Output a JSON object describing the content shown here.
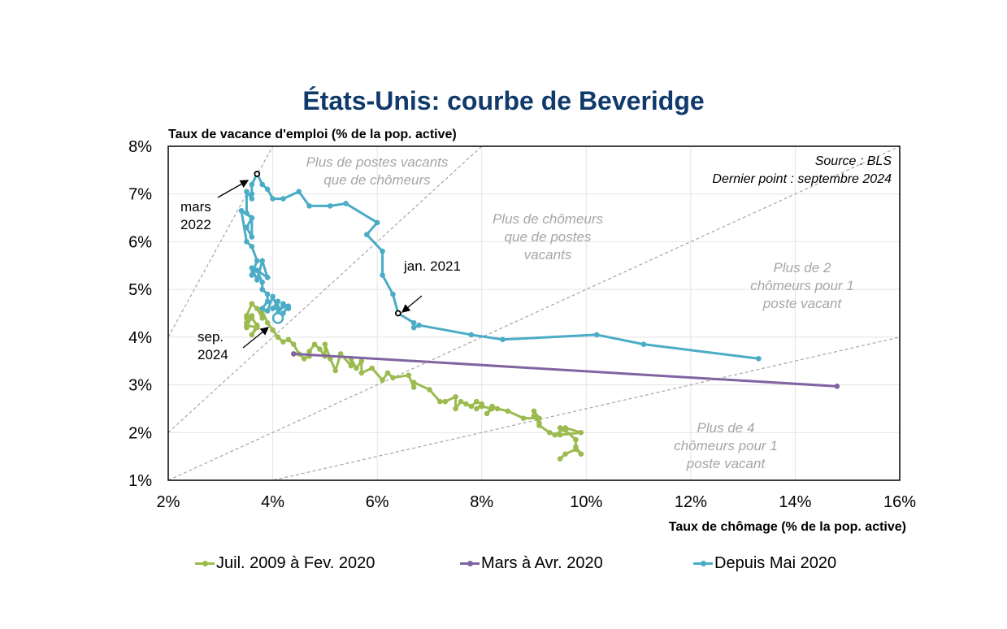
{
  "chart_data": {
    "type": "line",
    "title": "États-Unis: courbe de Beveridge",
    "xlabel": "Taux de chômage (% de la pop. active)",
    "ylabel": "Taux de vacance d'emploi (% de la pop. active)",
    "xlim": [
      2,
      16
    ],
    "ylim": [
      1,
      8
    ],
    "x_ticks": [
      "2%",
      "4%",
      "6%",
      "8%",
      "10%",
      "12%",
      "14%",
      "16%"
    ],
    "y_ticks": [
      "1%",
      "2%",
      "3%",
      "4%",
      "5%",
      "6%",
      "7%",
      "8%"
    ],
    "grid": true,
    "legend_position": "bottom",
    "source_note": "Source : BLS",
    "last_point_note": "Dernier point : septembre 2024",
    "region_labels": [
      {
        "text": "Plus de postes vacants\nque de chômeurs"
      },
      {
        "text": "Plus de chômeurs\nque de postes\nvacants"
      },
      {
        "text": "Plus de 2\nchômeurs pour 1\nposte vacant"
      },
      {
        "text": "Plus de 4\nchômeurs pour 1\nposte vacant"
      }
    ],
    "ratio_lines": [
      0.5,
      1,
      2,
      4
    ],
    "annotations": [
      {
        "text": "mars\n2022",
        "x": 3.7,
        "y": 7.42
      },
      {
        "text": "jan. 2021",
        "x": 6.4,
        "y": 4.5
      },
      {
        "text": "sep.\n2024",
        "x": 4.1,
        "y": 4.4
      }
    ],
    "series": [
      {
        "name": "Juil. 2009 à Fev. 2020",
        "color": "#9bbb4f",
        "x": [
          9.5,
          9.6,
          9.8,
          9.9,
          9.8,
          9.8,
          9.6,
          9.5,
          9.5,
          9.9,
          9.6,
          9.4,
          9.3,
          9.1,
          9.1,
          9.0,
          9.0,
          9.1,
          8.8,
          8.5,
          8.3,
          8.2,
          8.1,
          8.2,
          8.0,
          7.9,
          8.0,
          7.9,
          7.8,
          7.7,
          7.6,
          7.5,
          7.5,
          7.3,
          7.3,
          7.2,
          7.0,
          6.7,
          6.7,
          6.6,
          6.3,
          6.2,
          6.1,
          5.9,
          5.7,
          5.7,
          5.6,
          5.5,
          5.5,
          5.3,
          5.2,
          5.1,
          5.0,
          5.0,
          4.9,
          4.8,
          4.7,
          4.7,
          4.6,
          4.5,
          4.4,
          4.3,
          4.2,
          4.1,
          4.0,
          3.9,
          3.8,
          3.8,
          3.7,
          3.6,
          3.5,
          3.5,
          3.6,
          3.7,
          3.6,
          3.7,
          3.5,
          3.5,
          3.6,
          3.5,
          3.5
        ],
        "y": [
          1.45,
          1.55,
          1.65,
          1.55,
          1.7,
          1.85,
          2.05,
          2.1,
          1.95,
          2.0,
          2.1,
          1.95,
          2.0,
          2.15,
          2.2,
          2.35,
          2.45,
          2.3,
          2.3,
          2.45,
          2.5,
          2.55,
          2.4,
          2.5,
          2.55,
          2.5,
          2.6,
          2.65,
          2.55,
          2.6,
          2.65,
          2.5,
          2.75,
          2.65,
          2.65,
          2.65,
          2.9,
          3.05,
          2.95,
          3.2,
          3.15,
          3.25,
          3.1,
          3.35,
          3.25,
          3.5,
          3.35,
          3.55,
          3.4,
          3.65,
          3.3,
          3.55,
          3.85,
          3.6,
          3.75,
          3.85,
          3.7,
          3.6,
          3.55,
          3.65,
          3.85,
          3.95,
          3.9,
          4.0,
          4.15,
          4.3,
          4.55,
          4.4,
          4.6,
          4.7,
          4.45,
          4.3,
          4.4,
          4.25,
          4.05,
          4.2,
          4.25,
          4.4,
          4.45,
          4.2,
          4.3
        ]
      },
      {
        "name": "Mars à Avr. 2020",
        "color": "#8064a2",
        "x": [
          4.4,
          14.8
        ],
        "y": [
          3.65,
          2.97
        ]
      },
      {
        "name": "Depuis Mai 2020",
        "color": "#4bacc6",
        "x": [
          13.3,
          11.1,
          10.2,
          8.4,
          7.8,
          6.8,
          6.7,
          6.7,
          6.4,
          6.3,
          6.1,
          6.1,
          5.8,
          6.0,
          5.4,
          5.1,
          4.7,
          4.5,
          4.2,
          4.0,
          3.9,
          3.8,
          3.7,
          3.6,
          3.6,
          3.6,
          3.5,
          3.5,
          3.6,
          3.5,
          3.6,
          3.6,
          3.4,
          3.5,
          3.6,
          3.7,
          3.6,
          3.6,
          3.7,
          3.8,
          3.9,
          3.7,
          3.8,
          3.8,
          3.9,
          3.9,
          3.8,
          3.9,
          4.0,
          4.1,
          4.0,
          4.1,
          4.1,
          4.2,
          4.3,
          4.2,
          4.3,
          4.2,
          4.1
        ],
        "y": [
          3.55,
          3.85,
          4.05,
          3.95,
          4.05,
          4.25,
          4.2,
          4.3,
          4.5,
          4.9,
          5.3,
          5.8,
          6.15,
          6.4,
          6.8,
          6.75,
          6.75,
          7.05,
          6.9,
          6.9,
          7.1,
          7.2,
          7.42,
          7.2,
          7.0,
          6.9,
          7.05,
          6.6,
          6.5,
          6.3,
          6.1,
          6.5,
          6.65,
          6.0,
          5.9,
          5.6,
          5.3,
          5.45,
          5.2,
          5.6,
          5.25,
          5.4,
          5.15,
          5.0,
          4.9,
          4.75,
          4.6,
          4.55,
          4.85,
          4.6,
          4.6,
          4.75,
          4.5,
          4.65,
          4.6,
          4.7,
          4.65,
          4.5,
          4.4
        ]
      }
    ]
  }
}
